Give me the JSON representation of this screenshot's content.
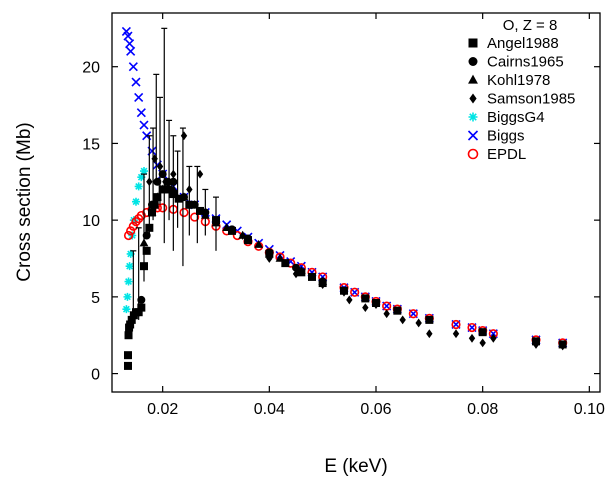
{
  "chart_data": {
    "type": "scatter",
    "title": "",
    "xlabel": "E (keV)",
    "ylabel": "Cross section   (Mb)",
    "xlim": [
      0.0105,
      0.102
    ],
    "ylim": [
      -1.2,
      23.5
    ],
    "xticks": [
      0.02,
      0.04,
      0.06,
      0.08,
      0.1
    ],
    "xtick_labels": [
      "0.02",
      "0.04",
      "0.06",
      "0.08",
      "0.10"
    ],
    "yticks": [
      0,
      5,
      10,
      15,
      20
    ],
    "ytick_labels": [
      "0",
      "5",
      "10",
      "15",
      "20"
    ],
    "grid": false,
    "legend": {
      "title": "O, Z = 8",
      "placement": "top-right"
    },
    "series": [
      {
        "name": "Angel1988",
        "marker": "square",
        "color": "#000000",
        "points": [
          [
            0.0135,
            0.5
          ],
          [
            0.0135,
            1.2
          ],
          [
            0.0136,
            2.5
          ],
          [
            0.0137,
            3.0
          ],
          [
            0.0139,
            3.2
          ],
          [
            0.0142,
            3.5
          ],
          [
            0.0146,
            3.8
          ],
          [
            0.015,
            4.0
          ],
          [
            0.0155,
            4.0
          ],
          [
            0.016,
            4.3
          ],
          [
            0.0165,
            7.0
          ],
          [
            0.017,
            8.0
          ],
          [
            0.0175,
            9.5
          ],
          [
            0.018,
            10.5
          ],
          [
            0.0185,
            11.0
          ],
          [
            0.019,
            11.5
          ],
          [
            0.02,
            12.0
          ],
          [
            0.021,
            12.0
          ],
          [
            0.022,
            11.7
          ],
          [
            0.023,
            11.4
          ],
          [
            0.025,
            11.0
          ],
          [
            0.027,
            10.6
          ],
          [
            0.03,
            10.0
          ],
          [
            0.033,
            9.3
          ],
          [
            0.036,
            8.7
          ],
          [
            0.04,
            7.8
          ],
          [
            0.043,
            7.2
          ],
          [
            0.046,
            6.6
          ],
          [
            0.048,
            6.3
          ],
          [
            0.05,
            5.9
          ],
          [
            0.054,
            5.4
          ],
          [
            0.058,
            4.9
          ],
          [
            0.06,
            4.6
          ],
          [
            0.064,
            4.1
          ],
          [
            0.07,
            3.5
          ],
          [
            0.08,
            2.7
          ],
          [
            0.09,
            2.1
          ],
          [
            0.095,
            1.9
          ]
        ]
      },
      {
        "name": "Cairns1965",
        "marker": "circle",
        "color": "#000000",
        "points": [
          [
            0.016,
            4.8
          ],
          [
            0.017,
            9.0
          ],
          [
            0.018,
            11.0
          ],
          [
            0.019,
            12.5
          ],
          [
            0.02,
            13.0
          ],
          [
            0.021,
            12.5
          ],
          [
            0.022,
            12.5
          ],
          [
            0.024,
            11.5
          ],
          [
            0.026,
            11.0
          ],
          [
            0.028,
            10.5
          ],
          [
            0.03,
            10.0
          ],
          [
            0.033,
            9.4
          ],
          [
            0.036,
            8.8
          ],
          [
            0.04,
            7.9
          ],
          [
            0.045,
            6.9
          ],
          [
            0.05,
            6.0
          ]
        ]
      },
      {
        "name": "Kohl1978",
        "marker": "triangle",
        "color": "#000000",
        "points": [
          [
            0.0165,
            8.5
          ],
          [
            0.018,
            10.5
          ],
          [
            0.019,
            11.5
          ],
          [
            0.02,
            12.0
          ],
          [
            0.022,
            12.0
          ],
          [
            0.024,
            11.5
          ],
          [
            0.026,
            11.0
          ],
          [
            0.028,
            10.3
          ],
          [
            0.03,
            9.8
          ],
          [
            0.032,
            9.5
          ],
          [
            0.035,
            9.0
          ],
          [
            0.038,
            8.4
          ],
          [
            0.042,
            7.5
          ],
          [
            0.046,
            6.7
          ],
          [
            0.05,
            6.0
          ]
        ]
      },
      {
        "name": "Samson1985",
        "marker": "diamond",
        "color": "#000000",
        "points": [
          [
            0.0175,
            12.5
          ],
          [
            0.0185,
            14.0
          ],
          [
            0.0195,
            13.5
          ],
          [
            0.0205,
            12.5
          ],
          [
            0.022,
            13.0
          ],
          [
            0.024,
            15.5
          ],
          [
            0.025,
            12.0
          ],
          [
            0.027,
            13.0
          ],
          [
            0.03,
            10.0
          ],
          [
            0.035,
            9.0
          ],
          [
            0.04,
            7.5
          ],
          [
            0.045,
            6.5
          ],
          [
            0.05,
            5.8
          ],
          [
            0.054,
            5.3
          ],
          [
            0.055,
            4.8
          ],
          [
            0.058,
            4.3
          ],
          [
            0.06,
            4.5
          ],
          [
            0.062,
            3.9
          ],
          [
            0.065,
            3.5
          ],
          [
            0.068,
            3.3
          ],
          [
            0.07,
            2.6
          ],
          [
            0.075,
            2.6
          ],
          [
            0.078,
            2.3
          ],
          [
            0.08,
            2.0
          ],
          [
            0.082,
            2.3
          ],
          [
            0.09,
            1.9
          ],
          [
            0.095,
            1.8
          ]
        ]
      },
      {
        "name": "BiggsG4",
        "marker": "asterisk",
        "color": "#00e5e5",
        "points": [
          [
            0.0132,
            4.2
          ],
          [
            0.0134,
            5.0
          ],
          [
            0.0136,
            6.0
          ],
          [
            0.0138,
            7.0
          ],
          [
            0.014,
            7.8
          ],
          [
            0.0143,
            9.0
          ],
          [
            0.0146,
            10.0
          ],
          [
            0.015,
            11.2
          ],
          [
            0.0155,
            12.2
          ],
          [
            0.016,
            12.8
          ],
          [
            0.0165,
            13.2
          ]
        ]
      },
      {
        "name": "Biggs",
        "marker": "x",
        "color": "#0000ff",
        "points": [
          [
            0.0132,
            22.3
          ],
          [
            0.0135,
            22.0
          ],
          [
            0.0138,
            21.5
          ],
          [
            0.014,
            21.0
          ],
          [
            0.0145,
            20.0
          ],
          [
            0.015,
            19.0
          ],
          [
            0.0155,
            18.0
          ],
          [
            0.016,
            17.0
          ],
          [
            0.0165,
            16.2
          ],
          [
            0.017,
            15.5
          ],
          [
            0.018,
            14.5
          ],
          [
            0.019,
            13.6
          ],
          [
            0.02,
            13.0
          ],
          [
            0.022,
            12.2
          ],
          [
            0.024,
            11.5
          ],
          [
            0.026,
            11.0
          ],
          [
            0.028,
            10.5
          ],
          [
            0.03,
            10.1
          ],
          [
            0.032,
            9.7
          ],
          [
            0.034,
            9.3
          ],
          [
            0.036,
            8.9
          ],
          [
            0.038,
            8.5
          ],
          [
            0.04,
            8.1
          ],
          [
            0.042,
            7.7
          ],
          [
            0.044,
            7.3
          ],
          [
            0.046,
            7.0
          ],
          [
            0.048,
            6.6
          ],
          [
            0.05,
            6.3
          ],
          [
            0.054,
            5.6
          ],
          [
            0.056,
            5.3
          ],
          [
            0.058,
            5.0
          ],
          [
            0.06,
            4.7
          ],
          [
            0.062,
            4.4
          ],
          [
            0.064,
            4.2
          ],
          [
            0.067,
            3.9
          ],
          [
            0.07,
            3.6
          ],
          [
            0.075,
            3.2
          ],
          [
            0.078,
            3.0
          ],
          [
            0.08,
            2.8
          ],
          [
            0.082,
            2.6
          ],
          [
            0.09,
            2.2
          ],
          [
            0.095,
            2.0
          ]
        ]
      },
      {
        "name": "EPDL",
        "marker": "open-circle",
        "color": "#ff0000",
        "points": [
          [
            0.0136,
            9.0
          ],
          [
            0.014,
            9.3
          ],
          [
            0.0145,
            9.6
          ],
          [
            0.015,
            9.9
          ],
          [
            0.0155,
            10.1
          ],
          [
            0.016,
            10.3
          ],
          [
            0.017,
            10.5
          ],
          [
            0.018,
            10.7
          ],
          [
            0.019,
            10.8
          ],
          [
            0.02,
            10.8
          ],
          [
            0.022,
            10.7
          ],
          [
            0.024,
            10.5
          ],
          [
            0.026,
            10.2
          ],
          [
            0.028,
            9.9
          ],
          [
            0.03,
            9.6
          ],
          [
            0.032,
            9.3
          ],
          [
            0.034,
            9.0
          ],
          [
            0.036,
            8.6
          ],
          [
            0.038,
            8.3
          ],
          [
            0.04,
            7.9
          ],
          [
            0.042,
            7.6
          ],
          [
            0.044,
            7.2
          ],
          [
            0.046,
            6.9
          ],
          [
            0.048,
            6.6
          ],
          [
            0.05,
            6.3
          ],
          [
            0.054,
            5.6
          ],
          [
            0.056,
            5.3
          ],
          [
            0.058,
            5.0
          ],
          [
            0.06,
            4.7
          ],
          [
            0.062,
            4.4
          ],
          [
            0.064,
            4.2
          ],
          [
            0.067,
            3.9
          ],
          [
            0.07,
            3.6
          ],
          [
            0.075,
            3.2
          ],
          [
            0.078,
            3.0
          ],
          [
            0.08,
            2.8
          ],
          [
            0.082,
            2.6
          ],
          [
            0.09,
            2.2
          ],
          [
            0.095,
            2.0
          ]
        ]
      }
    ],
    "error_bars": [
      {
        "x": 0.0145,
        "low": 3.0,
        "high": 8.0
      },
      {
        "x": 0.0155,
        "low": 3.5,
        "high": 9.5
      },
      {
        "x": 0.0165,
        "low": 6.0,
        "high": 13.0
      },
      {
        "x": 0.0175,
        "low": 9.0,
        "high": 15.5
      },
      {
        "x": 0.0182,
        "low": 10.0,
        "high": 16.0
      },
      {
        "x": 0.0188,
        "low": 12.5,
        "high": 19.5
      },
      {
        "x": 0.0195,
        "low": 11.0,
        "high": 18.0
      },
      {
        "x": 0.0203,
        "low": 8.5,
        "high": 22.5
      },
      {
        "x": 0.0212,
        "low": 10.0,
        "high": 16.5
      },
      {
        "x": 0.022,
        "low": 8.0,
        "high": 15.5
      },
      {
        "x": 0.0228,
        "low": 9.5,
        "high": 14.5
      },
      {
        "x": 0.0238,
        "low": 7.0,
        "high": 16.0
      },
      {
        "x": 0.025,
        "low": 9.0,
        "high": 13.5
      },
      {
        "x": 0.0265,
        "low": 8.5,
        "high": 13.5
      },
      {
        "x": 0.028,
        "low": 9.0,
        "high": 12.0
      },
      {
        "x": 0.03,
        "low": 8.0,
        "high": 11.5
      }
    ]
  }
}
